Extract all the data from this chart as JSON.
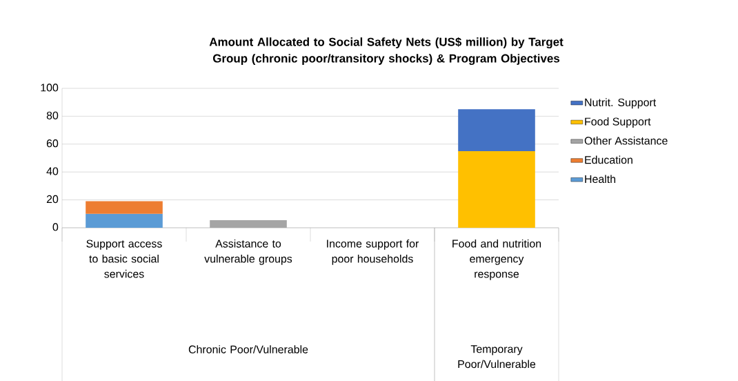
{
  "chart_data": {
    "type": "bar",
    "stacked": true,
    "title": "Amount Allocated to Social Safety Nets (US$ million) by Target Group (chronic poor/transitory shocks) & Program Objectives",
    "categories": [
      "Support access to basic social services",
      "Assistance to vulnerable groups",
      "Income support for poor households",
      "Food and nutrition emergency response"
    ],
    "series": [
      {
        "name": "Health",
        "color": "#5b9bd5",
        "values": [
          10,
          null,
          null,
          null
        ]
      },
      {
        "name": "Education",
        "color": "#ed7d31",
        "values": [
          9,
          null,
          null,
          null
        ]
      },
      {
        "name": "Other Assistance",
        "color": "#a5a5a5",
        "values": [
          null,
          5.5,
          null,
          null
        ]
      },
      {
        "name": "Food Support",
        "color": "#ffc000",
        "values": [
          null,
          null,
          null,
          55
        ]
      },
      {
        "name": "Nutrit. Support",
        "color": "#4472c4",
        "values": [
          null,
          null,
          null,
          30
        ]
      }
    ],
    "annotations": [
      "Chronic Poor/Vulnerable",
      "Temporary Poor/Vulnerable"
    ],
    "ylim": [
      0,
      100
    ],
    "yticks": [
      0,
      20,
      40,
      60,
      80,
      100
    ],
    "grid": "y",
    "legend": "right"
  }
}
